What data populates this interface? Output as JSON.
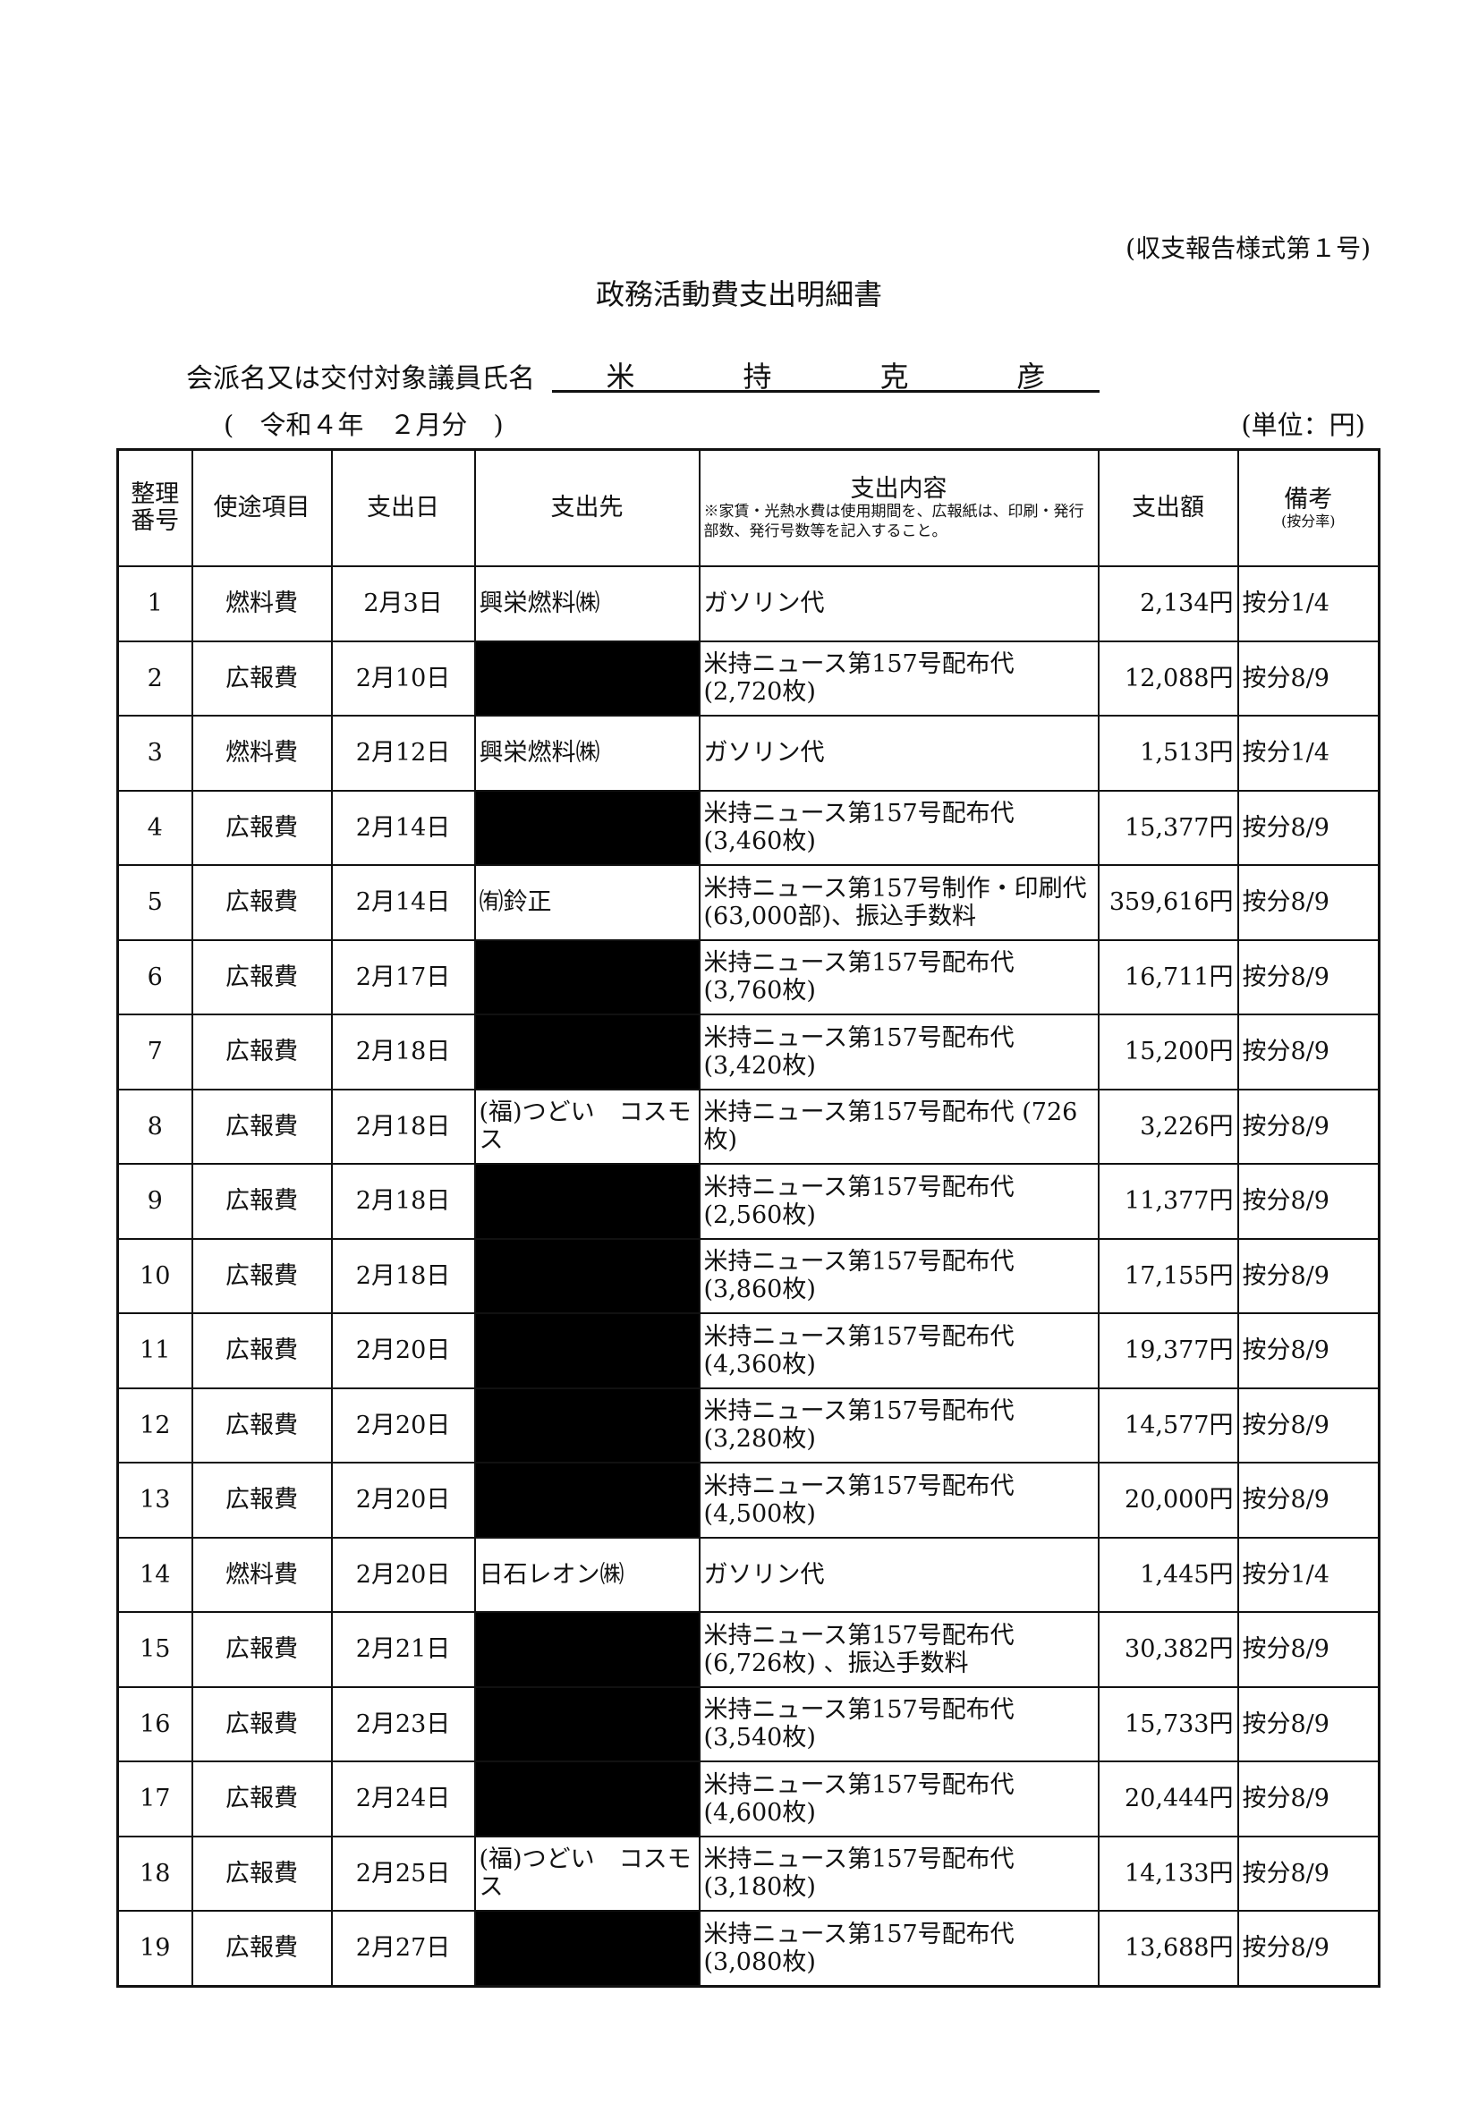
{
  "form_number": "(収支報告様式第１号)",
  "title": "政務活動費支出明細書",
  "member_label": "会派名又は交付対象議員氏名",
  "member_name": [
    "米",
    "持",
    "克",
    "彦"
  ],
  "period": "(　令和４年　２月分　)",
  "unit": "(単位：円)",
  "headers": {
    "no": "整理番号",
    "category": "使途項目",
    "date": "支出日",
    "payee": "支出先",
    "content": "支出内容",
    "content_note": "※家賃・光熱水費は使用期間を、広報紙は、印刷・発行部数、発行号数等を記入すること。",
    "amount": "支出額",
    "remarks": "備考",
    "remarks_sub": "(按分率)"
  },
  "rows": [
    {
      "no": "1",
      "category": "燃料費",
      "date": "2月3日",
      "payee": "興栄燃料㈱",
      "redacted": false,
      "content": "ガソリン代",
      "amount": "2,134円",
      "remarks": "按分1/4"
    },
    {
      "no": "2",
      "category": "広報費",
      "date": "2月10日",
      "payee": "",
      "redacted": true,
      "content": "米持ニュース第157号配布代 (2,720枚)",
      "amount": "12,088円",
      "remarks": "按分8/9"
    },
    {
      "no": "3",
      "category": "燃料費",
      "date": "2月12日",
      "payee": "興栄燃料㈱",
      "redacted": false,
      "content": "ガソリン代",
      "amount": "1,513円",
      "remarks": "按分1/4"
    },
    {
      "no": "4",
      "category": "広報費",
      "date": "2月14日",
      "payee": "",
      "redacted": true,
      "content": "米持ニュース第157号配布代 (3,460枚)",
      "amount": "15,377円",
      "remarks": "按分8/9"
    },
    {
      "no": "5",
      "category": "広報費",
      "date": "2月14日",
      "payee": "㈲鈴正",
      "redacted": false,
      "content": "米持ニュース第157号制作・印刷代(63,000部)、振込手数料",
      "amount": "359,616円",
      "remarks": "按分8/9"
    },
    {
      "no": "6",
      "category": "広報費",
      "date": "2月17日",
      "payee": "",
      "redacted": true,
      "content": "米持ニュース第157号配布代 (3,760枚)",
      "amount": "16,711円",
      "remarks": "按分8/9"
    },
    {
      "no": "7",
      "category": "広報費",
      "date": "2月18日",
      "payee": "",
      "redacted": true,
      "content": "米持ニュース第157号配布代 (3,420枚)",
      "amount": "15,200円",
      "remarks": "按分8/9"
    },
    {
      "no": "8",
      "category": "広報費",
      "date": "2月18日",
      "payee": "(福)つどい　コスモス",
      "redacted": false,
      "content": "米持ニュース第157号配布代 (726枚)",
      "amount": "3,226円",
      "remarks": "按分8/9"
    },
    {
      "no": "9",
      "category": "広報費",
      "date": "2月18日",
      "payee": "",
      "redacted": true,
      "content": "米持ニュース第157号配布代 (2,560枚)",
      "amount": "11,377円",
      "remarks": "按分8/9"
    },
    {
      "no": "10",
      "category": "広報費",
      "date": "2月18日",
      "payee": "",
      "redacted": true,
      "content": "米持ニュース第157号配布代 (3,860枚)",
      "amount": "17,155円",
      "remarks": "按分8/9"
    },
    {
      "no": "11",
      "category": "広報費",
      "date": "2月20日",
      "payee": "",
      "redacted": true,
      "content": "米持ニュース第157号配布代 (4,360枚)",
      "amount": "19,377円",
      "remarks": "按分8/9"
    },
    {
      "no": "12",
      "category": "広報費",
      "date": "2月20日",
      "payee": "",
      "redacted": true,
      "content": "米持ニュース第157号配布代 (3,280枚)",
      "amount": "14,577円",
      "remarks": "按分8/9"
    },
    {
      "no": "13",
      "category": "広報費",
      "date": "2月20日",
      "payee": "",
      "redacted": true,
      "content": "米持ニュース第157号配布代 (4,500枚)",
      "amount": "20,000円",
      "remarks": "按分8/9"
    },
    {
      "no": "14",
      "category": "燃料費",
      "date": "2月20日",
      "payee": "日石レオン㈱",
      "redacted": false,
      "content": "ガソリン代",
      "amount": "1,445円",
      "remarks": "按分1/4"
    },
    {
      "no": "15",
      "category": "広報費",
      "date": "2月21日",
      "payee": "",
      "redacted": true,
      "content": "米持ニュース第157号配布代 (6,726枚) 、振込手数料",
      "amount": "30,382円",
      "remarks": "按分8/9"
    },
    {
      "no": "16",
      "category": "広報費",
      "date": "2月23日",
      "payee": "",
      "redacted": true,
      "content": "米持ニュース第157号配布代 (3,540枚)",
      "amount": "15,733円",
      "remarks": "按分8/9"
    },
    {
      "no": "17",
      "category": "広報費",
      "date": "2月24日",
      "payee": "",
      "redacted": true,
      "content": "米持ニュース第157号配布代 (4,600枚)",
      "amount": "20,444円",
      "remarks": "按分8/9"
    },
    {
      "no": "18",
      "category": "広報費",
      "date": "2月25日",
      "payee": "(福)つどい　コスモス",
      "redacted": false,
      "content": "米持ニュース第157号配布代 (3,180枚)",
      "amount": "14,133円",
      "remarks": "按分8/9"
    },
    {
      "no": "19",
      "category": "広報費",
      "date": "2月27日",
      "payee": "",
      "redacted": true,
      "content": "米持ニュース第157号配布代 (3,080枚)",
      "amount": "13,688円",
      "remarks": "按分8/9"
    }
  ]
}
